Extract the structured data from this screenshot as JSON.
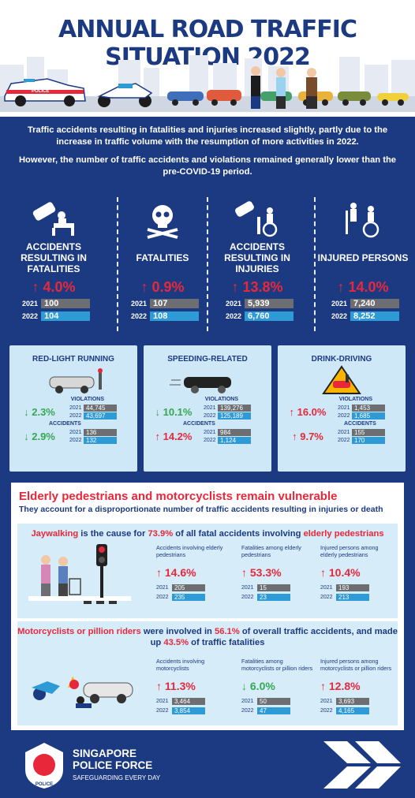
{
  "title": "ANNUAL ROAD TRAFFIC SITUATION 2022",
  "police_car_label": "POLICE",
  "intro": {
    "p1": "Traffic accidents resulting in fatalities and injuries increased slightly, partly due to the increase in traffic volume with the resumption of more activities in 2022.",
    "p2": "However, the number of traffic accidents and violations remained generally lower than the pre-COVID-19 period."
  },
  "stats": [
    {
      "label": "ACCIDENTS RESULTING IN FATALITIES",
      "change": "↑ 4.0%",
      "y2021": "2021",
      "v2021": "100",
      "y2022": "2022",
      "v2022": "104"
    },
    {
      "label": "FATALITIES",
      "change": "↑ 0.9%",
      "y2021": "2021",
      "v2021": "107",
      "y2022": "2022",
      "v2022": "108"
    },
    {
      "label": "ACCIDENTS RESULTING IN INJURIES",
      "change": "↑ 13.8%",
      "y2021": "2021",
      "v2021": "5,939",
      "y2022": "2022",
      "v2022": "6,760"
    },
    {
      "label": "INJURED PERSONS",
      "change": "↑ 14.0%",
      "y2021": "2021",
      "v2021": "7,240",
      "y2022": "2022",
      "v2022": "8,252"
    }
  ],
  "cards": [
    {
      "title": "RED-LIGHT RUNNING",
      "violations": {
        "label": "VIOLATIONS",
        "change": "↓ 2.3%",
        "v2021": "44,745",
        "v2022": "43,697"
      },
      "accidents": {
        "label": "ACCIDENTS",
        "change": "↓ 2.9%",
        "v2021": "136",
        "v2022": "132"
      }
    },
    {
      "title": "SPEEDING-RELATED",
      "violations": {
        "label": "VIOLATIONS",
        "change": "↓ 10.1%",
        "v2021": "139,276",
        "v2022": "125,189"
      },
      "accidents": {
        "label": "ACCIDENTS",
        "change": "↑ 14.2%",
        "v2021": "984",
        "v2022": "1,124"
      }
    },
    {
      "title": "DRINK-DRIVING",
      "violations": {
        "label": "VIOLATIONS",
        "change": "↑ 16.0%",
        "v2021": "1,453",
        "v2022": "1,685"
      },
      "accidents": {
        "label": "ACCIDENTS",
        "change": "↑ 9.7%",
        "v2021": "155",
        "v2022": "170"
      }
    }
  ],
  "years": {
    "a": "2021",
    "b": "2022"
  },
  "vulnerable": {
    "heading": "Elderly pedestrians and motorcyclists remain vulnerable",
    "subheading": "They account for a disproportionate number of traffic accidents resulting in injuries or death"
  },
  "elderly": {
    "head_r1": "Jaywalking",
    "head_m1": " is the cause for ",
    "head_r2": "73.9%",
    "head_m2": " of all fatal accidents involving ",
    "head_r3": "elderly pedestrians",
    "cols": [
      {
        "label": "Accidents involving elderly pedestrians",
        "change": "↑ 14.6%",
        "v2021": "205",
        "v2022": "235"
      },
      {
        "label": "Fatalities among elderly pedestrians",
        "change": "↑ 53.3%",
        "v2021": "15",
        "v2022": "23"
      },
      {
        "label": "Injured persons among elderly pedestrians",
        "change": "↑ 10.4%",
        "v2021": "193",
        "v2022": "213"
      }
    ]
  },
  "moto": {
    "head_r1": "Motorcyclists or pillion riders",
    "head_m1": " were involved in ",
    "head_r2": "56.1%",
    "head_m2": " of overall traffic accidents, and made up ",
    "head_r3": "43.5%",
    "head_m3": " of traffic fatalities",
    "cols": [
      {
        "label": "Accidents involving motorcyclists",
        "change": "↑ 11.3%",
        "v2021": "3,464",
        "v2022": "3,854"
      },
      {
        "label": "Fatalities among motorcyclists or pillion riders",
        "change": "↓ 6.0%",
        "v2021": "50",
        "v2022": "47"
      },
      {
        "label": "Injured persons among motorcyclists or pillion riders",
        "change": "↑ 12.8%",
        "v2021": "3,693",
        "v2022": "4,165"
      }
    ]
  },
  "footer": {
    "line1": "SINGAPORE",
    "line2": "POLICE FORCE",
    "tagline": "SAFEGUARDING EVERY DAY",
    "logo_text": "POLICE"
  },
  "colors": {
    "navy": "#1c3a82",
    "red": "#e8283a",
    "green": "#34a853",
    "blue": "#2e9ad6",
    "grey": "#6d6e71",
    "light": "#cfe8f7"
  },
  "icons": [
    "car-crash-icon",
    "skull-crossbones-icon",
    "wheelchair-icon",
    "traffic-light-icon",
    "motorcycle-crash-icon",
    "police-crest-icon"
  ]
}
